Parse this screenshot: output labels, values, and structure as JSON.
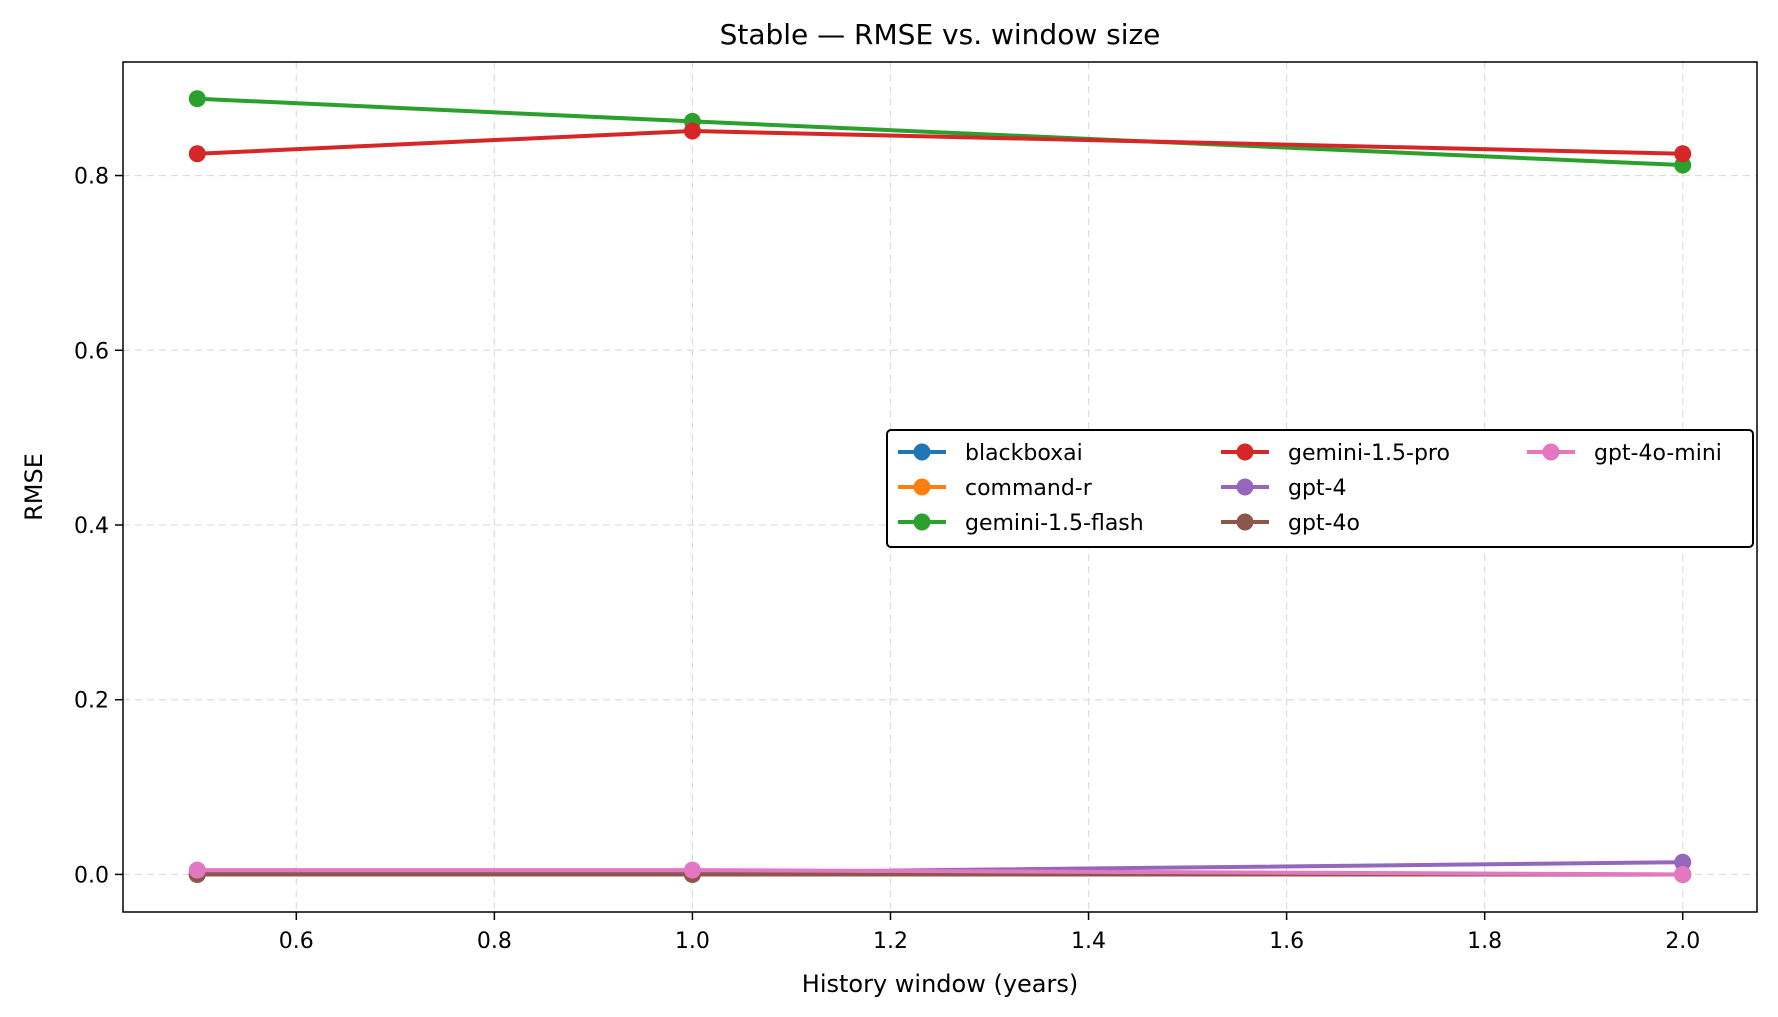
{
  "chart_data": {
    "type": "line",
    "title": "Stable — RMSE vs. window size",
    "xlabel": "History window (years)",
    "ylabel": "RMSE",
    "xlim": [
      0.425,
      2.075
    ],
    "ylim": [
      -0.043,
      0.93
    ],
    "xticks": [
      0.6,
      0.8,
      1.0,
      1.2,
      1.4,
      1.6,
      1.8,
      2.0
    ],
    "xtick_labels": [
      "0.6",
      "0.8",
      "1.0",
      "1.2",
      "1.4",
      "1.6",
      "1.8",
      "2.0"
    ],
    "yticks": [
      0.0,
      0.2,
      0.4,
      0.6,
      0.8
    ],
    "ytick_labels": [
      "0.0",
      "0.2",
      "0.4",
      "0.6",
      "0.8"
    ],
    "grid": true,
    "legend_placement": "center-right",
    "legend_columns": 3,
    "x": [
      0.5,
      1.0,
      2.0
    ],
    "series": [
      {
        "name": "blackboxai",
        "color": "#1f77b4",
        "values": [
          0.0,
          0.0,
          0.0
        ]
      },
      {
        "name": "command-r",
        "color": "#ff7f0e",
        "values": [
          0.0,
          0.0,
          0.0
        ]
      },
      {
        "name": "gemini-1.5-flash",
        "color": "#2ca02c",
        "values": [
          0.888,
          0.862,
          0.812
        ]
      },
      {
        "name": "gemini-1.5-pro",
        "color": "#d62728",
        "values": [
          0.825,
          0.851,
          0.825
        ]
      },
      {
        "name": "gpt-4",
        "color": "#9467bd",
        "values": [
          0.002,
          0.002,
          0.014
        ]
      },
      {
        "name": "gpt-4o",
        "color": "#8c564b",
        "values": [
          0.0,
          0.0,
          0.0
        ]
      },
      {
        "name": "gpt-4o-mini",
        "color": "#e377c2",
        "values": [
          0.005,
          0.005,
          0.0
        ]
      }
    ]
  }
}
